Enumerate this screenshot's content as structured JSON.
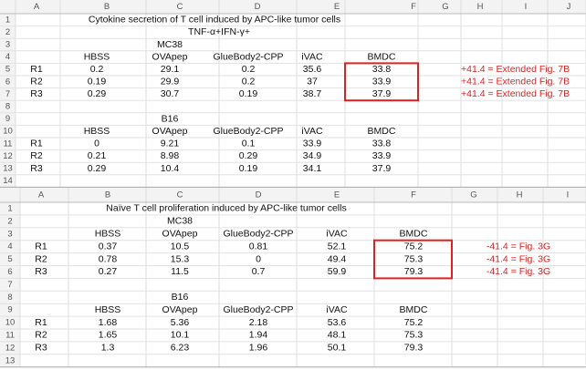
{
  "sheets": [
    {
      "columns": [
        "A",
        "B",
        "C",
        "D",
        "E",
        "F",
        "G",
        "H",
        "I",
        "J"
      ],
      "rows": [
        {
          "number": 1,
          "cells": {
            "B": "Cytokine secretion of T cell induced by APC-like tumor cells"
          }
        },
        {
          "number": 2,
          "cells": {
            "C": "TNF-α+IFN-γ+"
          }
        },
        {
          "number": 3,
          "cells": {
            "C": "MC38"
          }
        },
        {
          "number": 4,
          "cells": {
            "B": "HBSS",
            "C": "OVApep",
            "D": "GlueBody2-CPP",
            "E": "iVAC",
            "F": "BMDC"
          }
        },
        {
          "number": 5,
          "cells": {
            "A": "R1",
            "B": 0.2,
            "C": 29.1,
            "D": 0.2,
            "E": 35.6,
            "F": 33.8,
            "H": "+41.4 = Extended Fig. 7B"
          }
        },
        {
          "number": 6,
          "cells": {
            "A": "R2",
            "B": 0.19,
            "C": 29.9,
            "D": 0.2,
            "E": 37,
            "F": 33.9,
            "H": "+41.4 = Extended Fig. 7B"
          }
        },
        {
          "number": 7,
          "cells": {
            "A": "R3",
            "B": 0.29,
            "C": 30.7,
            "D": 0.19,
            "E": 38.7,
            "F": 37.9,
            "H": "+41.4 = Extended Fig. 7B"
          }
        },
        {
          "number": 8,
          "cells": {}
        },
        {
          "number": 9,
          "cells": {
            "C": "B16"
          }
        },
        {
          "number": 10,
          "cells": {
            "B": "HBSS",
            "C": "OVApep",
            "D": "GlueBody2-CPP",
            "E": "iVAC",
            "F": "BMDC"
          }
        },
        {
          "number": 11,
          "cells": {
            "A": "R1",
            "B": 0,
            "C": 9.21,
            "D": 0.1,
            "E": 33.9,
            "F": 33.8
          }
        },
        {
          "number": 12,
          "cells": {
            "A": "R2",
            "B": 0.21,
            "C": 8.98,
            "D": 0.29,
            "E": 34.9,
            "F": 33.9
          }
        },
        {
          "number": 13,
          "cells": {
            "A": "R3",
            "B": 0.29,
            "C": 10.4,
            "D": 0.19,
            "E": 34.1,
            "F": 37.9
          }
        },
        {
          "number": 14,
          "cells": {}
        }
      ]
    },
    {
      "columns": [
        "A",
        "B",
        "C",
        "D",
        "E",
        "F",
        "G",
        "H",
        "I"
      ],
      "rows": [
        {
          "number": 1,
          "cells": {
            "B": "Naïve T cell proliferation induced by APC-like tumor cells"
          }
        },
        {
          "number": 2,
          "cells": {
            "C": "MC38"
          }
        },
        {
          "number": 3,
          "cells": {
            "B": "HBSS",
            "C": "OVApep",
            "D": "GlueBody2-CPP",
            "E": "iVAC",
            "F": "BMDC"
          }
        },
        {
          "number": 4,
          "cells": {
            "A": "R1",
            "B": 0.37,
            "C": 10.5,
            "D": 0.81,
            "E": 52.1,
            "F": 75.2,
            "G": "-41.4 = Fig. 3G"
          }
        },
        {
          "number": 5,
          "cells": {
            "A": "R2",
            "B": 0.78,
            "C": 15.3,
            "D": 0,
            "E": 49.4,
            "F": 75.3,
            "G": "-41.4 = Fig. 3G"
          }
        },
        {
          "number": 6,
          "cells": {
            "A": "R3",
            "B": 0.27,
            "C": 11.5,
            "D": 0.7,
            "E": 59.9,
            "F": 79.3,
            "G": "-41.4 = Fig. 3G"
          }
        },
        {
          "number": 7,
          "cells": {}
        },
        {
          "number": 8,
          "cells": {
            "C": "B16"
          }
        },
        {
          "number": 9,
          "cells": {
            "B": "HBSS",
            "C": "OVApep",
            "D": "GlueBody2-CPP",
            "E": "iVAC",
            "F": "BMDC"
          }
        },
        {
          "number": 10,
          "cells": {
            "A": "R1",
            "B": 1.68,
            "C": 5.36,
            "D": 2.18,
            "E": 53.6,
            "F": 75.2
          }
        },
        {
          "number": 11,
          "cells": {
            "A": "R2",
            "B": 1.65,
            "C": 10.1,
            "D": 1.94,
            "E": 48.1,
            "F": 75.3
          }
        },
        {
          "number": 12,
          "cells": {
            "A": "R3",
            "B": 1.3,
            "C": 6.23,
            "D": 1.96,
            "E": 50.1,
            "F": 79.3
          }
        },
        {
          "number": 13,
          "cells": {}
        }
      ]
    }
  ]
}
